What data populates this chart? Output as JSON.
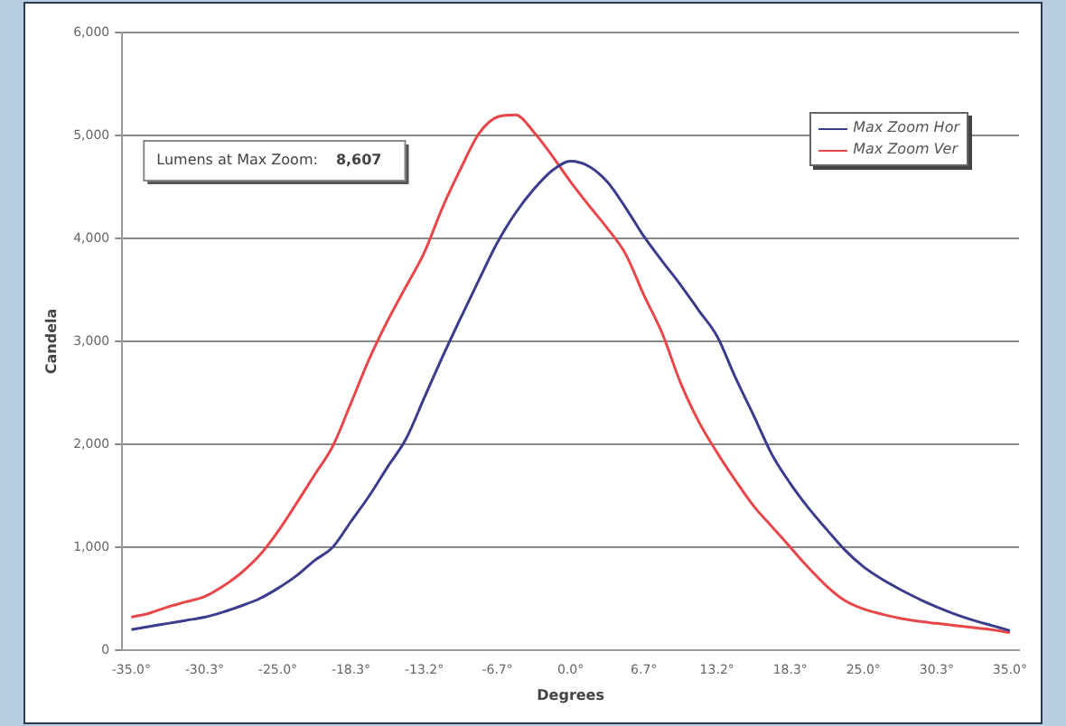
{
  "chart_data": {
    "type": "line",
    "xlabel": "Degrees",
    "ylabel": "Candela",
    "annotations": [
      "Lumens at Max Zoom:",
      "8,607"
    ],
    "categories": [
      "-35.0°",
      null,
      null,
      null,
      "-30.3°",
      null,
      null,
      null,
      "-25.0°",
      null,
      null,
      null,
      "-18.3°",
      null,
      null,
      null,
      "-13.2°",
      null,
      null,
      null,
      "-6.7°",
      null,
      null,
      null,
      "0.0°",
      null,
      null,
      null,
      "6.7°",
      null,
      null,
      null,
      "13.2°",
      null,
      null,
      null,
      "18.3°",
      null,
      null,
      null,
      "25.0°",
      null,
      null,
      null,
      "30.3°",
      null,
      null,
      null,
      "35.0°"
    ],
    "series": [
      {
        "name": "Max Zoom Hor",
        "color": "#3c3c8c",
        "values": [
          200,
          230,
          260,
          290,
          320,
          370,
          430,
          500,
          600,
          720,
          870,
          1000,
          1250,
          1500,
          1780,
          2050,
          2450,
          2850,
          3230,
          3600,
          3960,
          4250,
          4480,
          4660,
          4750,
          4700,
          4550,
          4300,
          4020,
          3780,
          3550,
          3300,
          3050,
          2650,
          2280,
          1900,
          1620,
          1380,
          1170,
          970,
          810,
          690,
          590,
          500,
          420,
          350,
          290,
          240,
          190
        ]
      },
      {
        "name": "Max Zoom Ver",
        "color": "#e8474a",
        "values": [
          320,
          360,
          420,
          470,
          520,
          620,
          750,
          920,
          1150,
          1420,
          1700,
          1980,
          2400,
          2830,
          3200,
          3530,
          3860,
          4300,
          4680,
          5020,
          5180,
          5200,
          5030,
          4800,
          4550,
          4320,
          4100,
          3850,
          3450,
          3080,
          2600,
          2220,
          1920,
          1650,
          1400,
          1200,
          1000,
          800,
          620,
          480,
          400,
          350,
          310,
          280,
          260,
          240,
          220,
          200,
          170
        ]
      }
    ],
    "ylim": [
      0,
      6000
    ],
    "yticks": [
      {
        "value": 0,
        "label": "0"
      },
      {
        "value": 1000,
        "label": "1,000"
      },
      {
        "value": 2000,
        "label": "2,000"
      },
      {
        "value": 3000,
        "label": "3,000"
      },
      {
        "value": 4000,
        "label": "4,000"
      },
      {
        "value": 5000,
        "label": "5,000"
      },
      {
        "value": 6000,
        "label": "6,000"
      }
    ],
    "grid": "y",
    "legend": "top right",
    "marker": "none",
    "line_style": "solid"
  }
}
